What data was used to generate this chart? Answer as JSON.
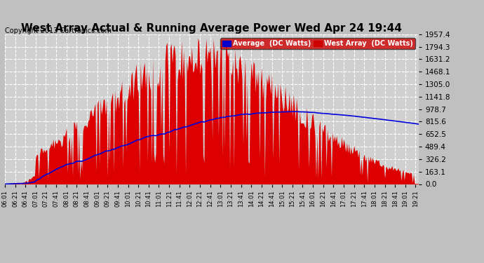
{
  "title": "West Array Actual & Running Average Power Wed Apr 24 19:44",
  "copyright": "Copyright 2013 Cartronics.com",
  "legend_labels": [
    "Average  (DC Watts)",
    "West Array  (DC Watts)"
  ],
  "legend_avg_color": "#0000cc",
  "legend_west_color": "#cc0000",
  "ymin": 0.0,
  "ymax": 1957.4,
  "yticks": [
    0.0,
    163.1,
    326.2,
    489.4,
    652.5,
    815.6,
    978.7,
    1141.8,
    1305.0,
    1468.1,
    1631.2,
    1794.3,
    1957.4
  ],
  "background_color": "#c0c0c0",
  "plot_bg_color": "#d0d0d0",
  "bar_color": "#dd0000",
  "avg_line_color": "#0000dd",
  "title_fontsize": 11,
  "copyright_fontsize": 7,
  "x_start_hour": 6,
  "x_start_min": 1,
  "x_end_hour": 19,
  "x_end_min": 27,
  "interval_minutes": 2,
  "xtick_interval_minutes": 20
}
